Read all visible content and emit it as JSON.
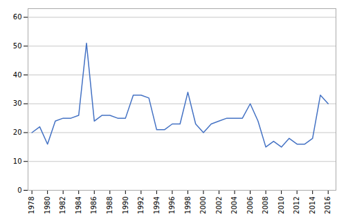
{
  "chart_data": {
    "type": "line",
    "x": [
      1978,
      1979,
      1980,
      1981,
      1982,
      1983,
      1984,
      1985,
      1986,
      1987,
      1988,
      1989,
      1990,
      1991,
      1992,
      1993,
      1994,
      1995,
      1996,
      1997,
      1998,
      1999,
      2000,
      2001,
      2002,
      2003,
      2004,
      2005,
      2006,
      2007,
      2008,
      2009,
      2010,
      2011,
      2012,
      2013,
      2014,
      2015,
      2016
    ],
    "values": [
      20,
      22,
      16,
      24,
      25,
      25,
      26,
      51,
      24,
      26,
      26,
      25,
      25,
      33,
      33,
      32,
      21,
      21,
      23,
      23,
      34,
      23,
      20,
      23,
      24,
      25,
      25,
      25,
      30,
      24,
      15,
      17,
      15,
      18,
      16,
      16,
      18,
      33,
      30
    ],
    "color": "#4472C4",
    "xlim": [
      1977.5,
      2017.0
    ],
    "xticks": [
      1978,
      1980,
      1982,
      1984,
      1986,
      1988,
      1990,
      1992,
      1994,
      1996,
      1998,
      2000,
      2002,
      2004,
      2006,
      2008,
      2010,
      2012,
      2014,
      2016
    ],
    "ylim": [
      0,
      63
    ],
    "yticks": [
      0,
      10,
      20,
      30,
      40,
      50,
      60
    ],
    "grid": true
  }
}
